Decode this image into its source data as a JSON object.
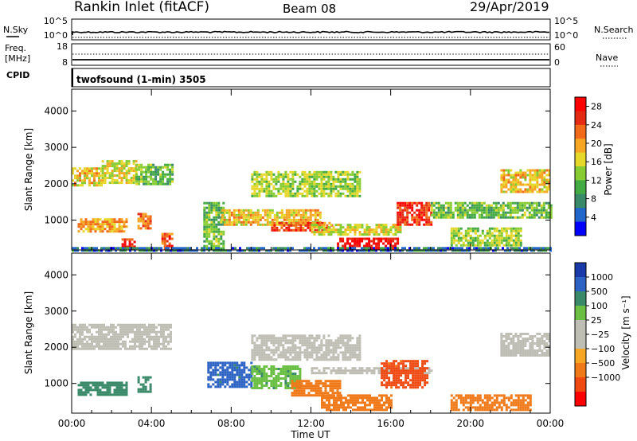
{
  "header": {
    "station": "Rankin Inlet (fitACF)",
    "beam": "Beam 08",
    "date": "29/Apr/2019"
  },
  "strips": {
    "nsky": {
      "label": "N.Sky",
      "yticks": [
        "10^5",
        "10^0"
      ]
    },
    "freq": {
      "label_line1": "Freq.",
      "label_line2": "[MHz]",
      "yticks": [
        "18",
        "8"
      ]
    },
    "cpid": {
      "label": "CPID",
      "value": "twofsound (1-min) 3505"
    },
    "nsearch": {
      "label": "N.Search",
      "yticks": [
        "10^5",
        "10^0"
      ]
    },
    "nave": {
      "label": "Nave",
      "yticks": [
        "60",
        "0"
      ]
    }
  },
  "chart_data": [
    {
      "type": "heatmap",
      "name": "Power",
      "xlabel": "Time UT",
      "ylabel": "Slant Range [km]",
      "xlim": [
        0,
        24
      ],
      "ylim": [
        180,
        4600
      ],
      "xticks": [
        0,
        4,
        8,
        12,
        16,
        20,
        24
      ],
      "yticks": [
        1000,
        2000,
        3000,
        4000
      ],
      "colorbar": {
        "label": "Power [dB]",
        "ticks": [
          "4",
          "8",
          "12",
          "16",
          "20",
          "24",
          "28"
        ],
        "range": [
          0,
          30
        ],
        "colors": [
          "#0000ff",
          "#2266cc",
          "#3a8a6a",
          "#44aa44",
          "#88cc33",
          "#e6d82a",
          "#f5a623",
          "#f06a1a",
          "#e42a12",
          "#ff0000"
        ]
      },
      "regions": [
        {
          "t0": 0.0,
          "t1": 1.5,
          "r0": 1950,
          "r1": 2450,
          "value": 18
        },
        {
          "t0": 1.5,
          "t1": 3.2,
          "r0": 2050,
          "r1": 2650,
          "value": 16
        },
        {
          "t0": 3.2,
          "t1": 5.0,
          "r0": 2000,
          "r1": 2550,
          "value": 12
        },
        {
          "t0": 0.3,
          "t1": 2.8,
          "r0": 700,
          "r1": 1050,
          "value": 20
        },
        {
          "t0": 3.3,
          "t1": 4.0,
          "r0": 750,
          "r1": 1200,
          "value": 22
        },
        {
          "t0": 2.5,
          "t1": 3.2,
          "r0": 200,
          "r1": 500,
          "value": 26
        },
        {
          "t0": 4.5,
          "t1": 5.0,
          "r0": 200,
          "r1": 650,
          "value": 24
        },
        {
          "t0": 6.6,
          "t1": 7.6,
          "r0": 250,
          "r1": 1500,
          "value": 12
        },
        {
          "t0": 7.5,
          "t1": 12.5,
          "r0": 850,
          "r1": 1300,
          "value": 18
        },
        {
          "t0": 10.0,
          "t1": 13.0,
          "r0": 700,
          "r1": 950,
          "value": 24
        },
        {
          "t0": 9.0,
          "t1": 14.5,
          "r0": 1650,
          "r1": 2350,
          "value": 14
        },
        {
          "t0": 12.0,
          "t1": 16.5,
          "r0": 600,
          "r1": 900,
          "value": 16
        },
        {
          "t0": 13.3,
          "t1": 16.3,
          "r0": 220,
          "r1": 520,
          "value": 28
        },
        {
          "t0": 16.3,
          "t1": 18.0,
          "r0": 850,
          "r1": 1500,
          "value": 26
        },
        {
          "t0": 18.0,
          "t1": 24.0,
          "r0": 1050,
          "r1": 1500,
          "value": 12
        },
        {
          "t0": 21.5,
          "t1": 24.0,
          "r0": 1750,
          "r1": 2400,
          "value": 18
        },
        {
          "t0": 19.0,
          "t1": 22.5,
          "r0": 300,
          "r1": 800,
          "value": 14
        },
        {
          "t0": 0.0,
          "t1": 24.0,
          "r0": 190,
          "r1": 260,
          "value": 6
        }
      ]
    },
    {
      "type": "heatmap",
      "name": "Velocity",
      "xlabel": "Time UT",
      "ylabel": "Slant Range [km]",
      "xlim": [
        0,
        24
      ],
      "ylim": [
        180,
        4600
      ],
      "xticks": [
        0,
        4,
        8,
        12,
        16,
        20,
        24
      ],
      "xticklabels": [
        "00:00",
        "04:00",
        "08:00",
        "12:00",
        "16:00",
        "20:00",
        "00:00"
      ],
      "yticks": [
        1000,
        2000,
        3000,
        4000
      ],
      "colorbar": {
        "label": "Velocity [m s⁻¹]",
        "ticks": [
          "1000",
          "500",
          "100",
          "25",
          "−25",
          "−100",
          "−500",
          "−1000"
        ],
        "colors": [
          "#1a3aaa",
          "#2b62c4",
          "#3a8a6a",
          "#6cbf45",
          "#bebeb4",
          "#bebeb4",
          "#f5a623",
          "#f07a1a",
          "#f04a12",
          "#ff0000"
        ]
      },
      "regions": [
        {
          "t0": 0.0,
          "t1": 5.0,
          "r0": 1950,
          "r1": 2650,
          "value": 0
        },
        {
          "t0": 9.0,
          "t1": 14.5,
          "r0": 1650,
          "r1": 2350,
          "value": 0
        },
        {
          "t0": 21.5,
          "t1": 24.0,
          "r0": 1750,
          "r1": 2400,
          "value": 0
        },
        {
          "t0": 12.0,
          "t1": 18.0,
          "r0": 1300,
          "r1": 1450,
          "value": 0
        },
        {
          "t0": 0.3,
          "t1": 2.8,
          "r0": 700,
          "r1": 1050,
          "value": 200
        },
        {
          "t0": 3.3,
          "t1": 4.0,
          "r0": 750,
          "r1": 1200,
          "value": 150
        },
        {
          "t0": 6.8,
          "t1": 9.0,
          "r0": 900,
          "r1": 1600,
          "value": 700
        },
        {
          "t0": 9.0,
          "t1": 11.5,
          "r0": 900,
          "r1": 1500,
          "value": 80
        },
        {
          "t0": 11.0,
          "t1": 13.5,
          "r0": 700,
          "r1": 1100,
          "value": -300
        },
        {
          "t0": 12.5,
          "t1": 16.0,
          "r0": 250,
          "r1": 700,
          "value": -200
        },
        {
          "t0": 15.5,
          "t1": 17.8,
          "r0": 900,
          "r1": 1650,
          "value": -700
        },
        {
          "t0": 19.0,
          "t1": 23.0,
          "r0": 300,
          "r1": 700,
          "value": -150
        }
      ]
    }
  ]
}
